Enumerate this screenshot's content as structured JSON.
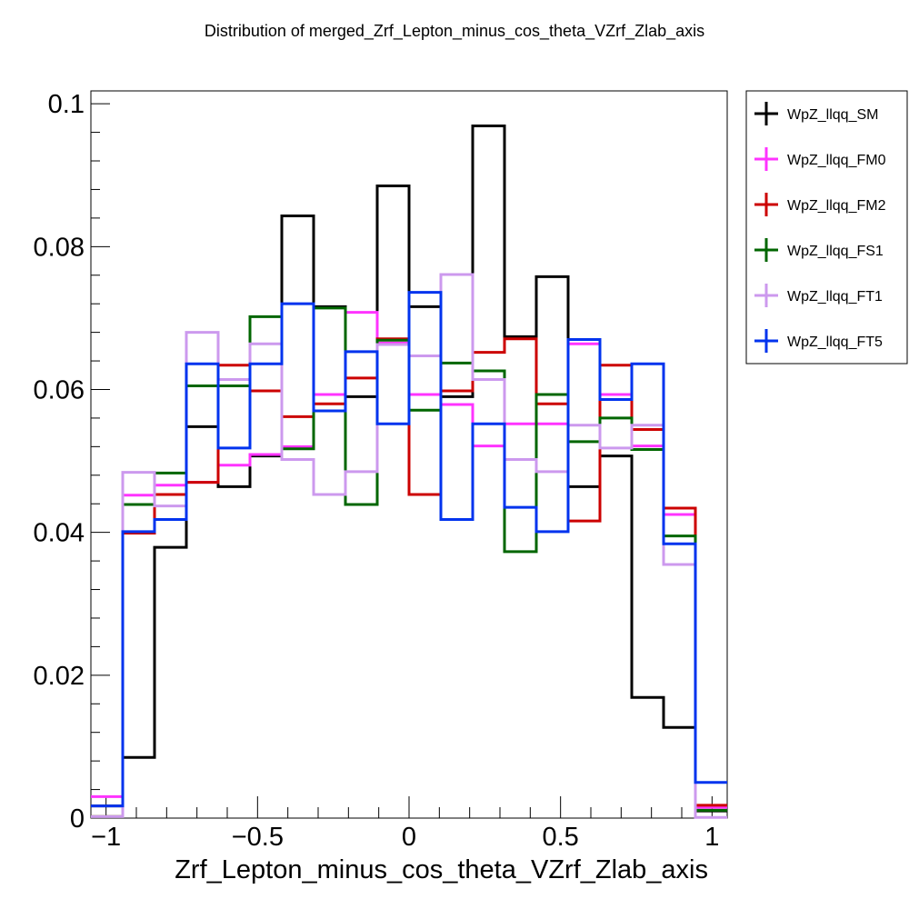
{
  "chart_data": {
    "type": "step-histogram",
    "title": "Distribution of merged_Zrf_Lepton_minus_cos_theta_VZrf_Zlab_axis",
    "xlabel": "Zrf_Lepton_minus_cos_theta_VZrf_Zlab_axis",
    "ylabel": "",
    "xlim": [
      -1.05,
      1.05
    ],
    "ylim": [
      0,
      0.1018
    ],
    "x_ticks": [
      -1,
      -0.5,
      0,
      0.5,
      1
    ],
    "x_tick_labels": [
      "−1",
      "−0.5",
      "0",
      "0.5",
      "1"
    ],
    "y_ticks": [
      0,
      0.02,
      0.04,
      0.06,
      0.08,
      0.1
    ],
    "y_tick_labels": [
      "0",
      "0.02",
      "0.04",
      "0.06",
      "0.08",
      "0.1"
    ],
    "bin_edges": [
      -1.05,
      -0.945,
      -0.84,
      -0.735,
      -0.63,
      -0.525,
      -0.42,
      -0.315,
      -0.21,
      -0.105,
      0.0,
      0.105,
      0.21,
      0.315,
      0.42,
      0.525,
      0.63,
      0.735,
      0.84,
      0.945,
      1.05
    ],
    "legend_position": "right-outside",
    "series": [
      {
        "name": "WpZ_llqq_SM",
        "color": "#000000",
        "values": [
          0.0017,
          0.0085,
          0.0379,
          0.0548,
          0.0464,
          0.0507,
          0.0843,
          0.0716,
          0.059,
          0.0885,
          0.0716,
          0.059,
          0.0969,
          0.0674,
          0.0758,
          0.0464,
          0.0507,
          0.0169,
          0.0127,
          0.001
        ]
      },
      {
        "name": "WpZ_llqq_FM0",
        "color": "#ff33ff",
        "values": [
          0.003,
          0.0452,
          0.0466,
          0.047,
          0.0494,
          0.0509,
          0.052,
          0.0593,
          0.0708,
          0.0665,
          0.0593,
          0.0579,
          0.0521,
          0.0552,
          0.0552,
          0.0664,
          0.0593,
          0.0521,
          0.0425,
          0.0015
        ]
      },
      {
        "name": "WpZ_llqq_FM2",
        "color": "#cc0000",
        "values": [
          0.0002,
          0.0399,
          0.0453,
          0.047,
          0.0634,
          0.0598,
          0.0562,
          0.058,
          0.0616,
          0.0671,
          0.0453,
          0.0598,
          0.0652,
          0.0671,
          0.058,
          0.0416,
          0.0634,
          0.0544,
          0.0434,
          0.0018
        ]
      },
      {
        "name": "WpZ_llqq_FS1",
        "color": "#006600",
        "values": [
          0.0002,
          0.0439,
          0.0483,
          0.0605,
          0.0605,
          0.0702,
          0.0517,
          0.0714,
          0.0439,
          0.0669,
          0.0571,
          0.0637,
          0.0626,
          0.0373,
          0.0593,
          0.0527,
          0.056,
          0.0516,
          0.0395,
          0.0011
        ]
      },
      {
        "name": "WpZ_llqq_FT1",
        "color": "#cc99ee",
        "values": [
          0.0002,
          0.0484,
          0.0437,
          0.068,
          0.0614,
          0.0664,
          0.0502,
          0.0453,
          0.0485,
          0.0663,
          0.0647,
          0.0761,
          0.0614,
          0.0502,
          0.0485,
          0.055,
          0.0518,
          0.055,
          0.0355,
          0.0001
        ]
      },
      {
        "name": "WpZ_llqq_FT5",
        "color": "#0033ee",
        "values": [
          0.0017,
          0.0401,
          0.0418,
          0.0636,
          0.0518,
          0.0636,
          0.072,
          0.057,
          0.0653,
          0.0552,
          0.0736,
          0.0418,
          0.0552,
          0.0435,
          0.0401,
          0.067,
          0.0586,
          0.0636,
          0.0384,
          0.005
        ]
      }
    ]
  }
}
